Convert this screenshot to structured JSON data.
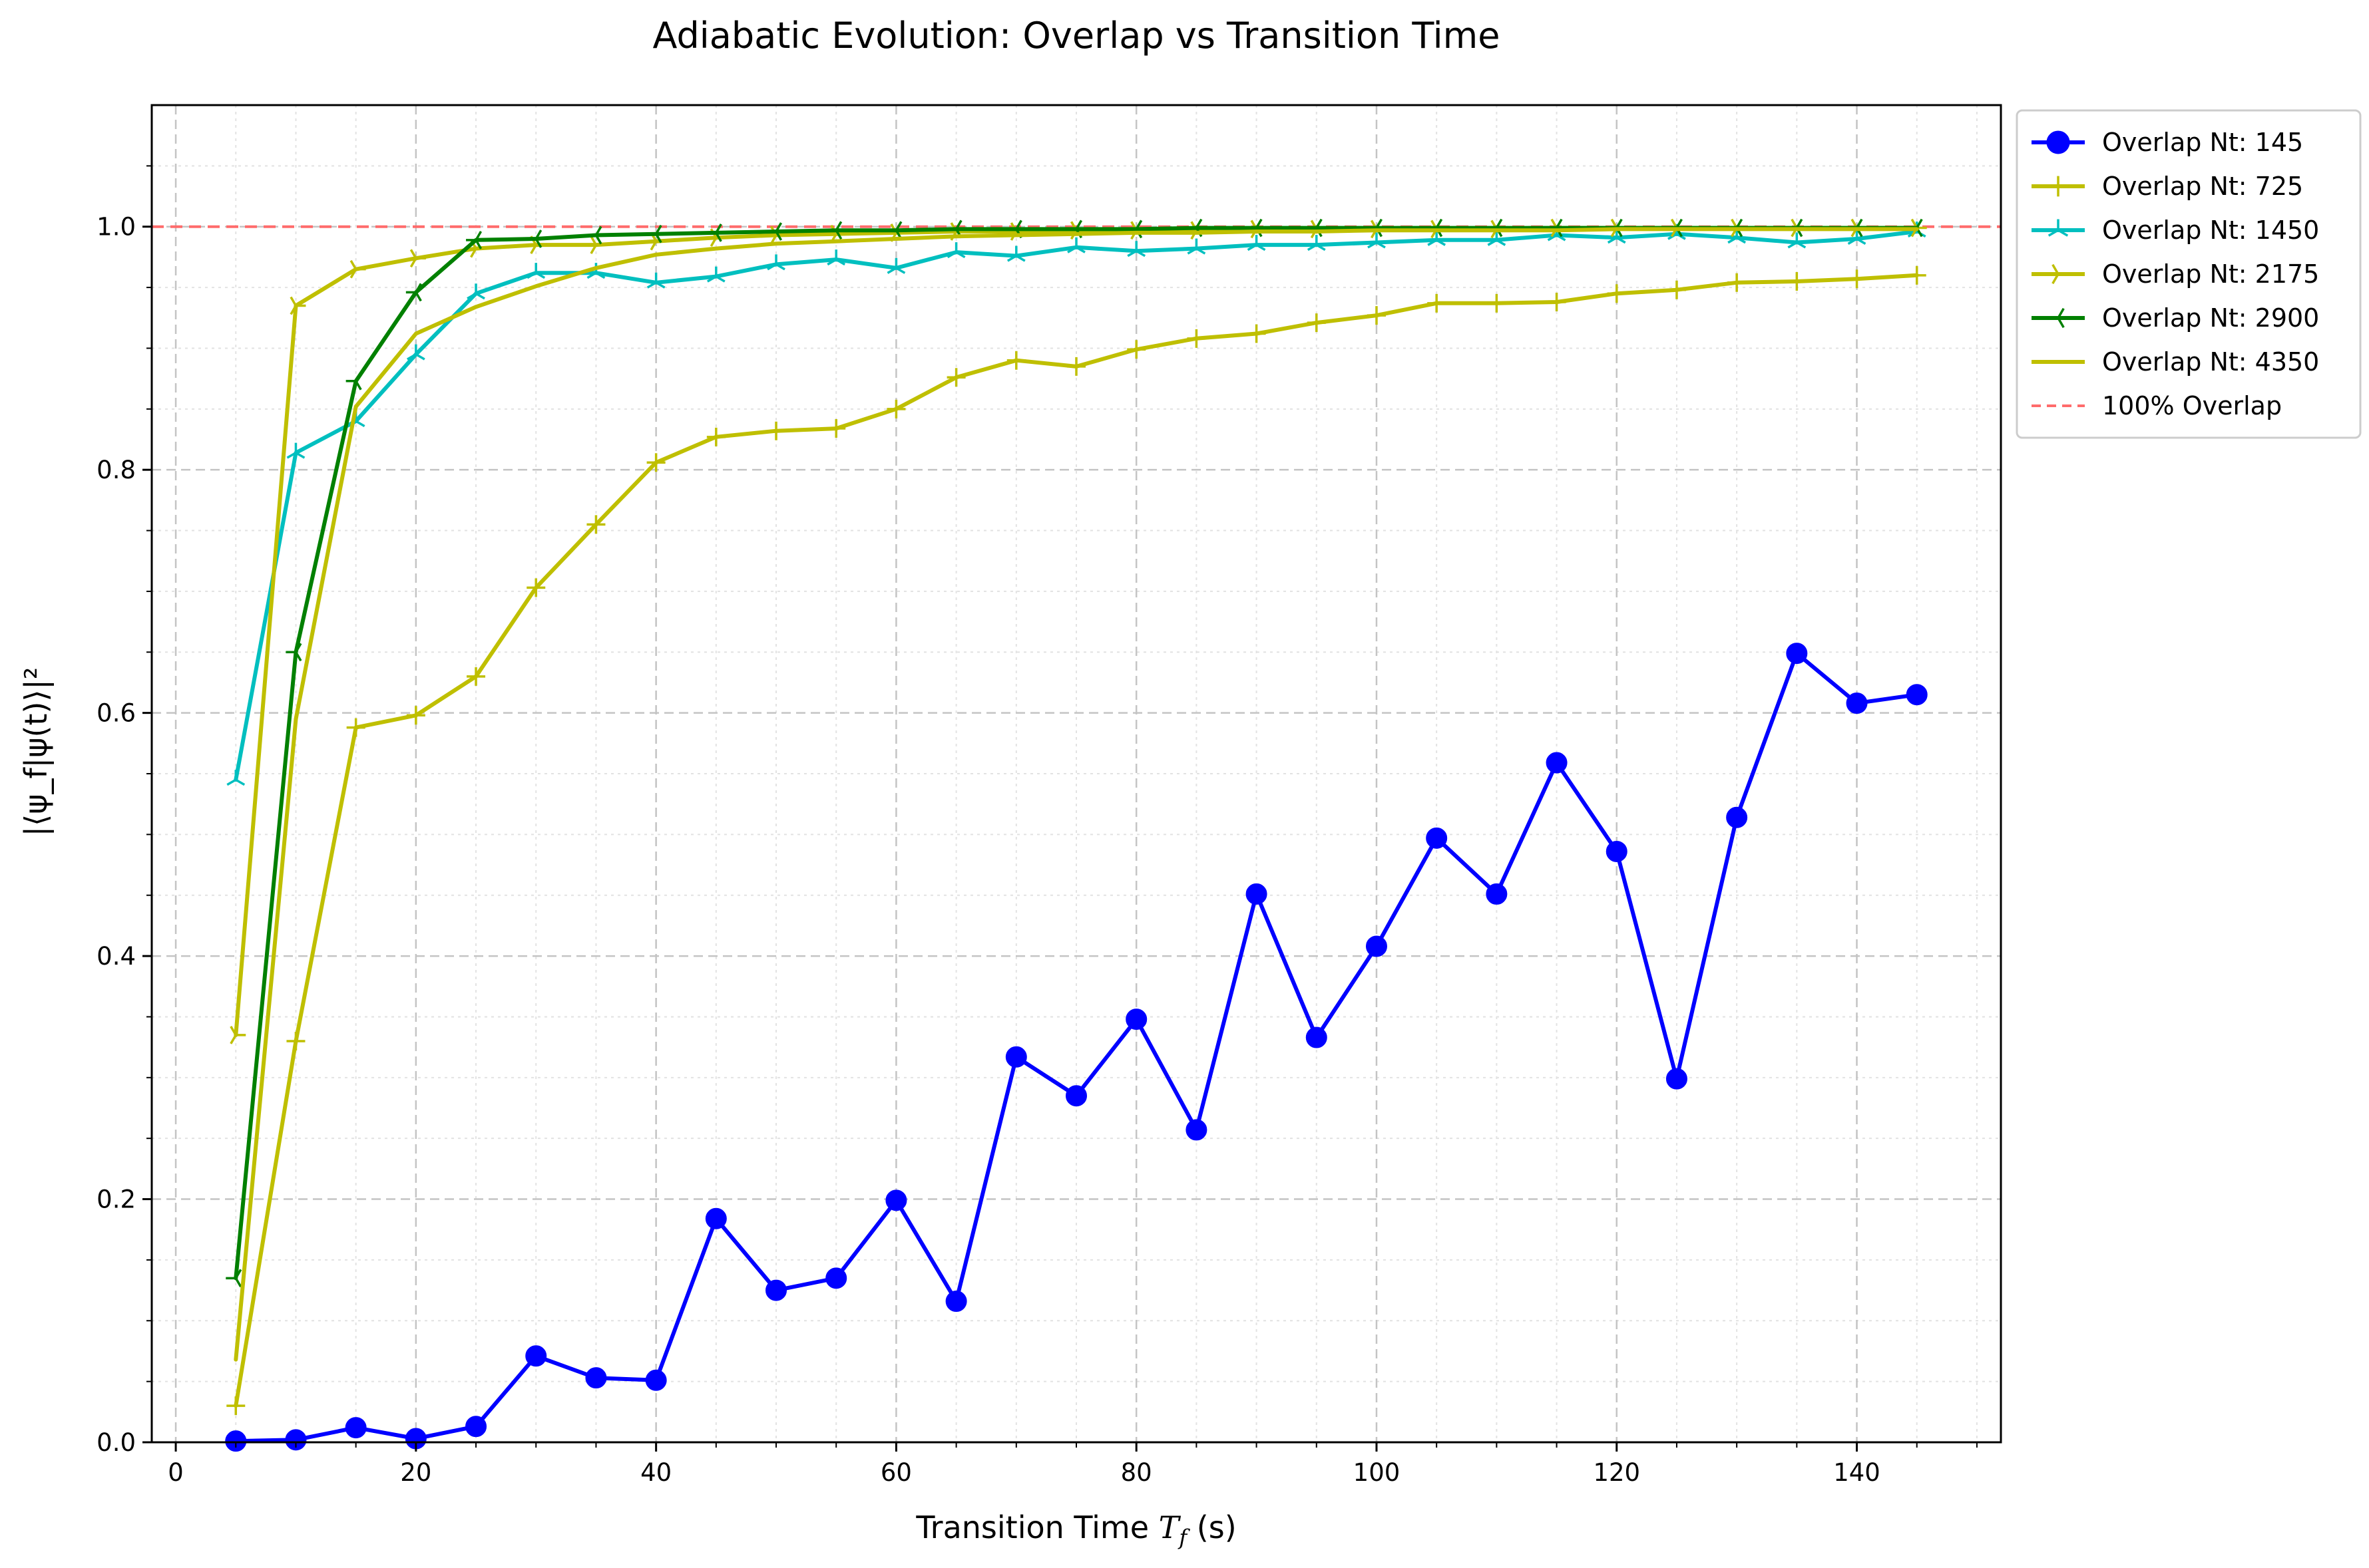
{
  "chart_data": {
    "type": "line",
    "title": "Adiabatic Evolution: Overlap vs Transition Time",
    "xlabel": "Transition Time ",
    "xlabel_var": "T",
    "xlabel_sub": "f",
    "xlabel_unit": " (s)",
    "ylabel": "|⟨ψ_f|ψ(t)⟩|²",
    "xlim": [
      -2,
      152
    ],
    "ylim": [
      0,
      1.1
    ],
    "xticks": [
      0,
      20,
      40,
      60,
      80,
      100,
      120,
      140
    ],
    "xtick_labels": [
      "0",
      "20",
      "40",
      "60",
      "80",
      "100",
      "120",
      "140"
    ],
    "yticks": [
      0.0,
      0.2,
      0.4,
      0.6,
      0.8,
      1.0
    ],
    "ytick_labels": [
      "0.0",
      "0.2",
      "0.4",
      "0.6",
      "0.8",
      "1.0"
    ],
    "grid": true,
    "legend_position": "outside-top-right",
    "x": [
      5,
      10,
      15,
      20,
      25,
      30,
      35,
      40,
      45,
      50,
      55,
      60,
      65,
      70,
      75,
      80,
      85,
      90,
      95,
      100,
      105,
      110,
      115,
      120,
      125,
      130,
      135,
      140,
      145
    ],
    "series": [
      {
        "name": "Overlap Nt: 145",
        "color": "#0000ff",
        "marker": "circle",
        "values": [
          0.001,
          0.002,
          0.012,
          0.003,
          0.013,
          0.071,
          0.053,
          0.051,
          0.184,
          0.125,
          0.135,
          0.199,
          0.116,
          0.317,
          0.285,
          0.348,
          0.257,
          0.451,
          0.333,
          0.408,
          0.497,
          0.451,
          0.559,
          0.486,
          0.299,
          0.514,
          0.649,
          0.608,
          0.615
        ]
      },
      {
        "name": "Overlap Nt: 725",
        "color": "#bfbf00",
        "marker": "plus",
        "values": [
          0.03,
          0.33,
          0.588,
          0.598,
          0.63,
          0.703,
          0.755,
          0.806,
          0.827,
          0.832,
          0.834,
          0.85,
          0.876,
          0.89,
          0.885,
          0.899,
          0.908,
          0.912,
          0.921,
          0.927,
          0.937,
          0.937,
          0.938,
          0.945,
          0.948,
          0.954,
          0.955,
          0.957,
          0.96
        ]
      },
      {
        "name": "Overlap Nt: 1450",
        "color": "#00bfbf",
        "marker": "tri_up",
        "values": [
          0.545,
          0.814,
          0.84,
          0.895,
          0.945,
          0.962,
          0.962,
          0.954,
          0.959,
          0.969,
          0.973,
          0.966,
          0.979,
          0.976,
          0.983,
          0.98,
          0.982,
          0.985,
          0.985,
          0.987,
          0.989,
          0.989,
          0.993,
          0.991,
          0.994,
          0.991,
          0.987,
          0.99,
          0.996
        ]
      },
      {
        "name": "Overlap Nt: 2175",
        "color": "#bfbf00",
        "marker": "tri_right",
        "values": [
          0.335,
          0.935,
          0.965,
          0.974,
          0.982,
          0.985,
          0.985,
          0.988,
          0.991,
          0.993,
          0.994,
          0.995,
          0.996,
          0.996,
          0.997,
          0.997,
          0.997,
          0.998,
          0.998,
          0.998,
          0.998,
          0.998,
          0.999,
          0.999,
          0.999,
          0.999,
          0.999,
          0.999,
          0.999
        ]
      },
      {
        "name": "Overlap Nt: 2900",
        "color": "#008000",
        "marker": "tri_left",
        "values": [
          0.135,
          0.65,
          0.873,
          0.946,
          0.989,
          0.99,
          0.993,
          0.994,
          0.995,
          0.996,
          0.997,
          0.997,
          0.998,
          0.998,
          0.998,
          0.998,
          0.999,
          0.999,
          0.999,
          0.999,
          0.999,
          0.999,
          0.999,
          0.999,
          0.999,
          0.999,
          0.999,
          0.999,
          0.999
        ]
      },
      {
        "name": "Overlap Nt: 4350",
        "color": "#bfbf00",
        "marker": "none",
        "values": [
          0.068,
          0.595,
          0.852,
          0.912,
          0.934,
          0.951,
          0.966,
          0.977,
          0.982,
          0.986,
          0.988,
          0.99,
          0.992,
          0.993,
          0.994,
          0.995,
          0.995,
          0.996,
          0.996,
          0.997,
          0.997,
          0.997,
          0.997,
          0.998,
          0.998,
          0.998,
          0.998,
          0.998,
          0.998
        ]
      }
    ],
    "reference_line": {
      "name": "100% Overlap",
      "y": 1.0,
      "color": "#ff6b6b",
      "style": "dashed"
    }
  }
}
